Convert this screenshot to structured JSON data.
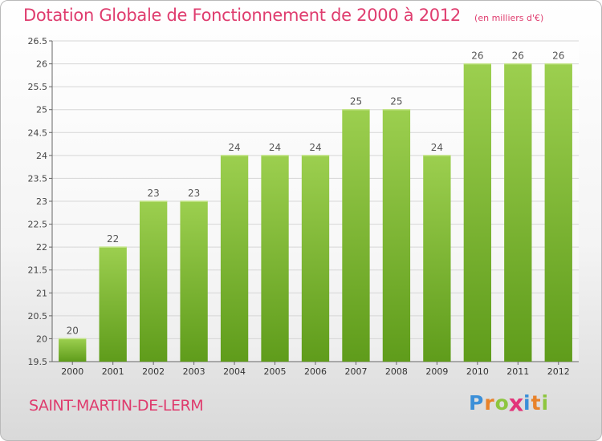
{
  "chart_data": {
    "type": "bar",
    "title": "Dotation Globale de Fonctionnement de 2000 à 2012",
    "subtitle": "(en milliers d'€)",
    "categories": [
      "2000",
      "2001",
      "2002",
      "2003",
      "2004",
      "2005",
      "2006",
      "2007",
      "2008",
      "2009",
      "2010",
      "2011",
      "2012"
    ],
    "values": [
      20,
      22,
      23,
      23,
      24,
      24,
      24,
      25,
      25,
      24,
      26,
      26,
      26
    ],
    "data_labels": [
      "20",
      "22",
      "23",
      "23",
      "24",
      "24",
      "24",
      "25",
      "25",
      "24",
      "26",
      "26",
      "26"
    ],
    "ylim": [
      19.5,
      26.5
    ],
    "yticks": [
      19.5,
      20,
      20.5,
      21,
      21.5,
      22,
      22.5,
      23,
      23.5,
      24,
      24.5,
      25,
      25.5,
      26,
      26.5
    ],
    "ytick_labels": [
      "19.5",
      "20",
      "20.5",
      "21",
      "21.5",
      "22",
      "22.5",
      "23",
      "23.5",
      "24",
      "24.5",
      "25",
      "25.5",
      "26",
      "26.5"
    ],
    "xlabel": "",
    "ylabel": "",
    "grid": true,
    "bar_color": "#7fc034",
    "label_color": "#555555"
  },
  "footer": {
    "town": "SAINT-MARTIN-DE-LERM",
    "brand_letters": [
      {
        "char": "P",
        "color": "#3b8fd8"
      },
      {
        "char": "r",
        "color": "#e8822a"
      },
      {
        "char": "o",
        "color": "#8dc63f"
      },
      {
        "char": "x",
        "color": "#e2357a"
      },
      {
        "char": "i",
        "color": "#3b8fd8"
      },
      {
        "char": "t",
        "color": "#e8822a"
      },
      {
        "char": "i",
        "color": "#8dc63f"
      }
    ]
  }
}
